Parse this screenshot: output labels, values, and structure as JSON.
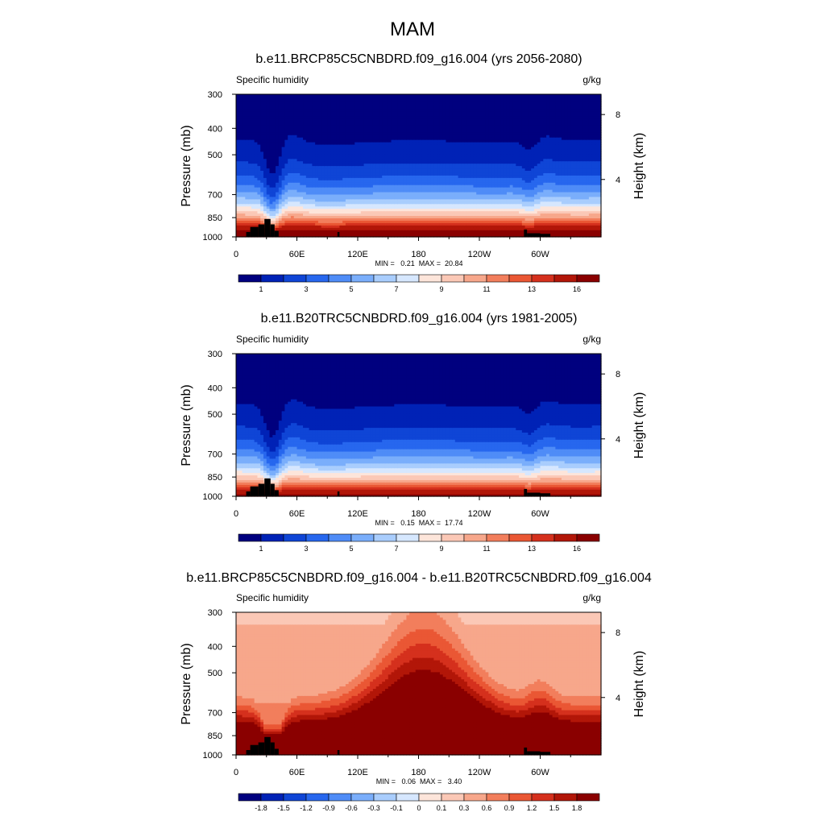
{
  "page": {
    "title": "MAM"
  },
  "colors": {
    "seq_palette": [
      "#00007f",
      "#0022b6",
      "#0f45d6",
      "#2767ee",
      "#4f8cf7",
      "#7aaefb",
      "#a9cdfd",
      "#d6e7fe",
      "#fde5da",
      "#fbc8b6",
      "#f7a78b",
      "#f27e5c",
      "#ea5734",
      "#d5301d",
      "#b21608",
      "#8a0000"
    ],
    "diff_palette": [
      "#00007f",
      "#0022b6",
      "#0f45d6",
      "#2767ee",
      "#4f8cf7",
      "#7aaefb",
      "#a9cdfd",
      "#d6e7fe",
      "#fde5da",
      "#fbc8b6",
      "#f7a78b",
      "#f27e5c",
      "#ea5734",
      "#d5301d",
      "#b21608",
      "#8a0000"
    ],
    "topography": "#000000"
  },
  "chart_data": [
    {
      "type": "heatmap",
      "title": "b.e11.BRCP85C5CNBDRD.f09_g16.004 (yrs 2056-2080)",
      "left_label": "Specific humidity",
      "right_label": "g/kg",
      "ylabel": "Pressure (mb)",
      "y2label": "Height (km)",
      "xticks": [
        "0",
        "60E",
        "120E",
        "180",
        "120W",
        "60W"
      ],
      "xtick_lon": [
        0,
        60,
        120,
        180,
        240,
        300
      ],
      "xlim": [
        0,
        360
      ],
      "yticks": [
        "300",
        "400",
        "500",
        "700",
        "850",
        "1000"
      ],
      "ytick_p": [
        300,
        400,
        500,
        700,
        850,
        1000
      ],
      "ylim": [
        1000,
        300
      ],
      "y2ticks": [
        "8",
        "4"
      ],
      "stats": "MIN =   0.21  MAX =  20.84",
      "colorbar_labels": [
        "1",
        "3",
        "5",
        "7",
        "9",
        "11",
        "13",
        "16"
      ],
      "field_min": 0.21,
      "field_max": 20.84
    },
    {
      "type": "heatmap",
      "title": "b.e11.B20TRC5CNBDRD.f09_g16.004 (yrs 1981-2005)",
      "left_label": "Specific humidity",
      "right_label": "g/kg",
      "ylabel": "Pressure (mb)",
      "y2label": "Height (km)",
      "xticks": [
        "0",
        "60E",
        "120E",
        "180",
        "120W",
        "60W"
      ],
      "xtick_lon": [
        0,
        60,
        120,
        180,
        240,
        300
      ],
      "xlim": [
        0,
        360
      ],
      "yticks": [
        "300",
        "400",
        "500",
        "700",
        "850",
        "1000"
      ],
      "ytick_p": [
        300,
        400,
        500,
        700,
        850,
        1000
      ],
      "ylim": [
        1000,
        300
      ],
      "y2ticks": [
        "8",
        "4"
      ],
      "stats": "MIN =   0.15  MAX =  17.74",
      "colorbar_labels": [
        "1",
        "3",
        "5",
        "7",
        "9",
        "11",
        "13",
        "16"
      ],
      "field_min": 0.15,
      "field_max": 17.74
    },
    {
      "type": "heatmap",
      "title": "b.e11.BRCP85C5CNBDRD.f09_g16.004 - b.e11.B20TRC5CNBDRD.f09_g16.004",
      "left_label": "Specific humidity",
      "right_label": "g/kg",
      "ylabel": "Pressure (mb)",
      "y2label": "Height (km)",
      "xticks": [
        "0",
        "60E",
        "120E",
        "180",
        "120W",
        "60W"
      ],
      "xtick_lon": [
        0,
        60,
        120,
        180,
        240,
        300
      ],
      "xlim": [
        0,
        360
      ],
      "yticks": [
        "300",
        "400",
        "500",
        "700",
        "850",
        "1000"
      ],
      "ytick_p": [
        300,
        400,
        500,
        700,
        850,
        1000
      ],
      "ylim": [
        1000,
        300
      ],
      "y2ticks": [
        "8",
        "4"
      ],
      "stats": "MIN =   0.06  MAX =   3.40",
      "colorbar_labels": [
        "-1.8",
        "-1.5",
        "-1.2",
        "-0.9",
        "-0.6",
        "-0.3",
        "-0.1",
        "0",
        "0.1",
        "0.3",
        "0.6",
        "0.9",
        "1.2",
        "1.5",
        "1.8"
      ],
      "field_min": 0.06,
      "field_max": 3.4
    }
  ]
}
